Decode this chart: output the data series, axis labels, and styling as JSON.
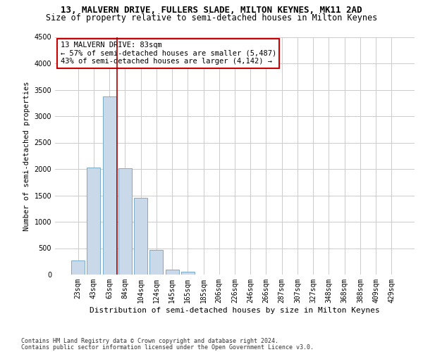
{
  "title": "13, MALVERN DRIVE, FULLERS SLADE, MILTON KEYNES, MK11 2AD",
  "subtitle": "Size of property relative to semi-detached houses in Milton Keynes",
  "xlabel": "Distribution of semi-detached houses by size in Milton Keynes",
  "ylabel": "Number of semi-detached properties",
  "footer_line1": "Contains HM Land Registry data © Crown copyright and database right 2024.",
  "footer_line2": "Contains public sector information licensed under the Open Government Licence v3.0.",
  "annotation_line1": "13 MALVERN DRIVE: 83sqm",
  "annotation_line2": "← 57% of semi-detached houses are smaller (5,487)",
  "annotation_line3": "43% of semi-detached houses are larger (4,142) →",
  "bar_categories": [
    "23sqm",
    "43sqm",
    "63sqm",
    "84sqm",
    "104sqm",
    "124sqm",
    "145sqm",
    "165sqm",
    "185sqm",
    "206sqm",
    "226sqm",
    "246sqm",
    "266sqm",
    "287sqm",
    "307sqm",
    "327sqm",
    "348sqm",
    "368sqm",
    "388sqm",
    "409sqm",
    "429sqm"
  ],
  "bar_values": [
    270,
    2030,
    3380,
    2010,
    1450,
    470,
    100,
    55,
    0,
    0,
    0,
    0,
    0,
    0,
    0,
    0,
    0,
    0,
    0,
    0,
    0
  ],
  "bar_color": "#c9d9ea",
  "bar_edge_color": "#7aaac8",
  "vline_color": "#aa0000",
  "ylim": [
    0,
    4500
  ],
  "yticks": [
    0,
    500,
    1000,
    1500,
    2000,
    2500,
    3000,
    3500,
    4000,
    4500
  ],
  "grid_color": "#cccccc",
  "background_color": "#ffffff",
  "annotation_box_edgecolor": "#cc0000",
  "title_fontsize": 9,
  "subtitle_fontsize": 8.5,
  "annotation_fontsize": 7.5,
  "axis_tick_fontsize": 7,
  "ylabel_fontsize": 7.5,
  "xlabel_fontsize": 8,
  "footer_fontsize": 6
}
